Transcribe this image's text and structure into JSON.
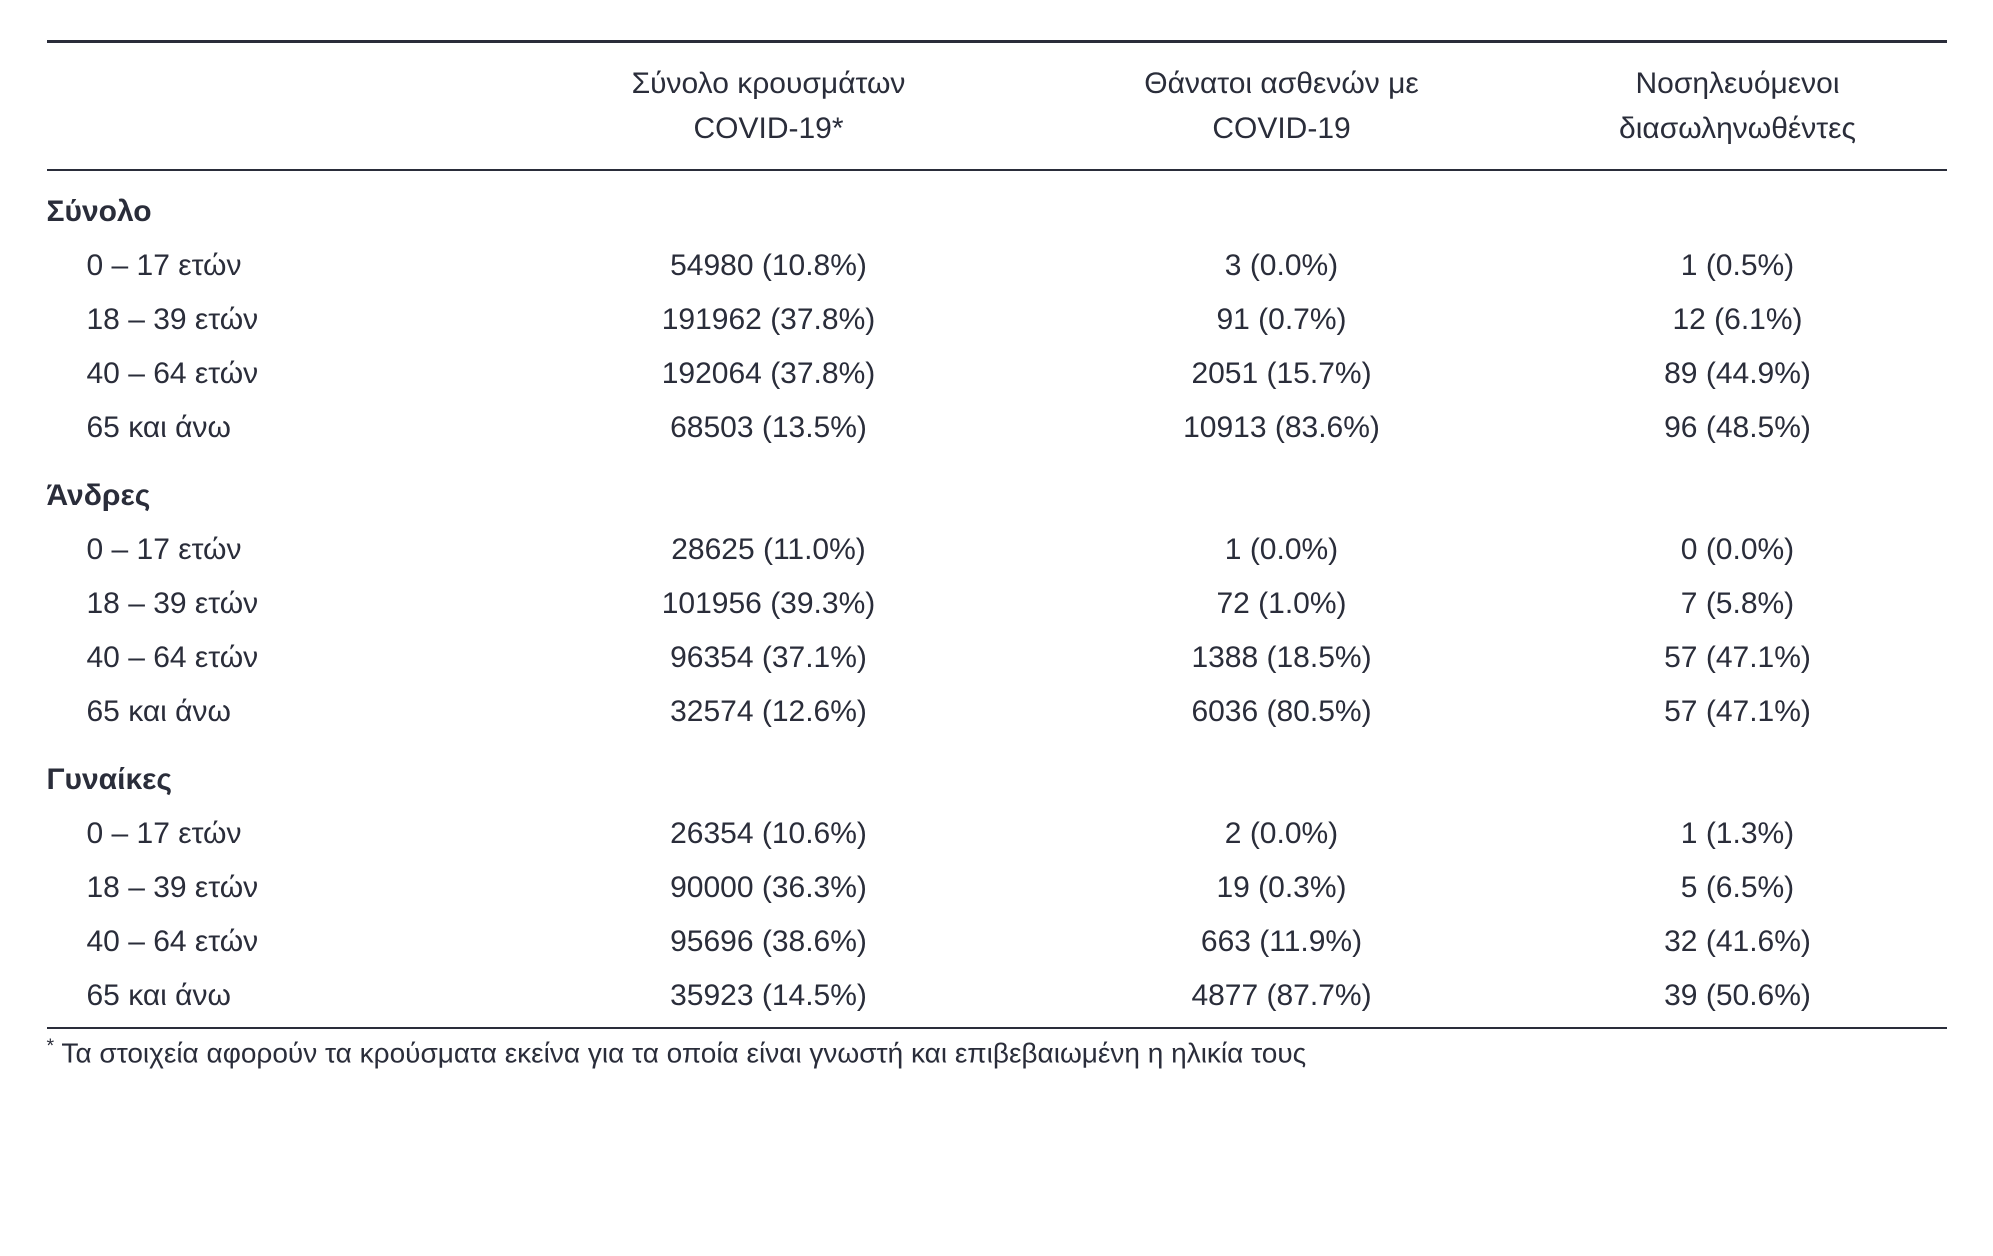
{
  "table": {
    "type": "table",
    "background_color": "#ffffff",
    "text_color": "#2a2d3a",
    "border_color": "#2a2d3a",
    "font_size_body": 30,
    "font_size_footnote": 28,
    "columns": [
      {
        "label": "",
        "width_pct": 24,
        "align": "left"
      },
      {
        "label_line1": "Σύνολο κρουσμάτων",
        "label_line2": "COVID-19*",
        "width_pct": 28,
        "align": "center"
      },
      {
        "label_line1": "Θάνατοι ασθενών με",
        "label_line2": "COVID-19",
        "width_pct": 26,
        "align": "center"
      },
      {
        "label_line1": "Νοσηλευόμενοι",
        "label_line2": "διασωληνωθέντες",
        "width_pct": 22,
        "align": "center"
      }
    ],
    "sections": [
      {
        "title": "Σύνολο",
        "rows": [
          {
            "age": "0 – 17 ετών",
            "cases": "54980 (10.8%)",
            "deaths": "3 (0.0%)",
            "intub": "1 (0.5%)"
          },
          {
            "age": "18 – 39 ετών",
            "cases": "191962 (37.8%)",
            "deaths": "91 (0.7%)",
            "intub": "12 (6.1%)"
          },
          {
            "age": "40 – 64 ετών",
            "cases": "192064 (37.8%)",
            "deaths": "2051 (15.7%)",
            "intub": "89 (44.9%)"
          },
          {
            "age": "65 και άνω",
            "cases": "68503 (13.5%)",
            "deaths": "10913 (83.6%)",
            "intub": "96 (48.5%)"
          }
        ]
      },
      {
        "title": "Άνδρες",
        "rows": [
          {
            "age": "0 – 17 ετών",
            "cases": "28625 (11.0%)",
            "deaths": "1 (0.0%)",
            "intub": "0 (0.0%)"
          },
          {
            "age": "18 – 39 ετών",
            "cases": "101956 (39.3%)",
            "deaths": "72 (1.0%)",
            "intub": "7 (5.8%)"
          },
          {
            "age": "40 – 64 ετών",
            "cases": "96354 (37.1%)",
            "deaths": "1388 (18.5%)",
            "intub": "57 (47.1%)"
          },
          {
            "age": "65 και άνω",
            "cases": "32574 (12.6%)",
            "deaths": "6036 (80.5%)",
            "intub": "57 (47.1%)"
          }
        ]
      },
      {
        "title": "Γυναίκες",
        "rows": [
          {
            "age": "0 – 17 ετών",
            "cases": "26354 (10.6%)",
            "deaths": "2 (0.0%)",
            "intub": "1 (1.3%)"
          },
          {
            "age": "18 – 39 ετών",
            "cases": "90000 (36.3%)",
            "deaths": "19 (0.3%)",
            "intub": "5 (6.5%)"
          },
          {
            "age": "40 – 64 ετών",
            "cases": "95696 (38.6%)",
            "deaths": "663 (11.9%)",
            "intub": "32 (41.6%)"
          },
          {
            "age": "65 και άνω",
            "cases": "35923 (14.5%)",
            "deaths": "4877 (87.7%)",
            "intub": "39 (50.6%)"
          }
        ]
      }
    ],
    "footnote_marker": "*",
    "footnote_text": " Τα στοιχεία αφορούν τα κρούσματα εκείνα για τα οποία είναι γνωστή και επιβεβαιωμένη η ηλικία τους"
  }
}
